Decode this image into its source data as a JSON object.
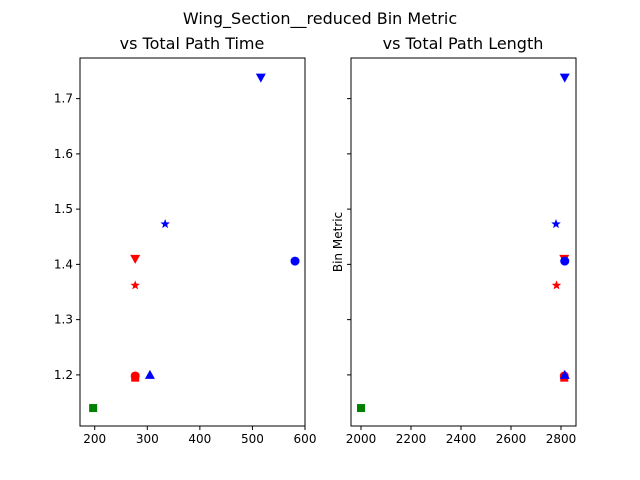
{
  "figure": {
    "title": "Wing_Section__reduced Bin Metric"
  },
  "chart_data": [
    {
      "type": "scatter",
      "title": "vs Total Path Time",
      "xlabel": "",
      "ylabel": "",
      "xlim": [
        172,
        600
      ],
      "ylim": [
        1.1075,
        1.7735
      ],
      "xticks": [
        200,
        300,
        400,
        500,
        600
      ],
      "yticks": [
        1.2,
        1.3,
        1.4,
        1.5,
        1.6,
        1.7
      ],
      "show_ytick_labels": true,
      "points": [
        {
          "x": 197,
          "y": 1.14,
          "color": "#008000",
          "marker": "square"
        },
        {
          "x": 277,
          "y": 1.195,
          "color": "#ff0000",
          "marker": "square"
        },
        {
          "x": 277,
          "y": 1.198,
          "color": "#ff0000",
          "marker": "circle"
        },
        {
          "x": 277,
          "y": 1.362,
          "color": "#ff0000",
          "marker": "star"
        },
        {
          "x": 277,
          "y": 1.41,
          "color": "#ff0000",
          "marker": "triangle-down"
        },
        {
          "x": 305,
          "y": 1.2,
          "color": "#0000ff",
          "marker": "triangle-up"
        },
        {
          "x": 334,
          "y": 1.473,
          "color": "#0000ff",
          "marker": "star"
        },
        {
          "x": 516,
          "y": 1.738,
          "color": "#0000ff",
          "marker": "triangle-down"
        },
        {
          "x": 581,
          "y": 1.406,
          "color": "#0000ff",
          "marker": "circle"
        }
      ]
    },
    {
      "type": "scatter",
      "title": "vs Total Path Length",
      "xlabel": "",
      "ylabel": "Bin Metric",
      "xlim": [
        1960,
        2860
      ],
      "ylim": [
        1.1075,
        1.7735
      ],
      "xticks": [
        2000,
        2200,
        2400,
        2600,
        2800
      ],
      "yticks": [
        1.2,
        1.3,
        1.4,
        1.5,
        1.6,
        1.7
      ],
      "show_ytick_labels": false,
      "points": [
        {
          "x": 2000,
          "y": 1.14,
          "color": "#008000",
          "marker": "square"
        },
        {
          "x": 2813,
          "y": 1.195,
          "color": "#ff0000",
          "marker": "square"
        },
        {
          "x": 2813,
          "y": 1.198,
          "color": "#ff0000",
          "marker": "circle"
        },
        {
          "x": 2782,
          "y": 1.362,
          "color": "#ff0000",
          "marker": "star"
        },
        {
          "x": 2813,
          "y": 1.41,
          "color": "#ff0000",
          "marker": "triangle-down"
        },
        {
          "x": 2815,
          "y": 1.2,
          "color": "#0000ff",
          "marker": "triangle-up"
        },
        {
          "x": 2780,
          "y": 1.473,
          "color": "#0000ff",
          "marker": "star"
        },
        {
          "x": 2815,
          "y": 1.738,
          "color": "#0000ff",
          "marker": "triangle-down"
        },
        {
          "x": 2815,
          "y": 1.406,
          "color": "#0000ff",
          "marker": "circle"
        }
      ]
    }
  ]
}
